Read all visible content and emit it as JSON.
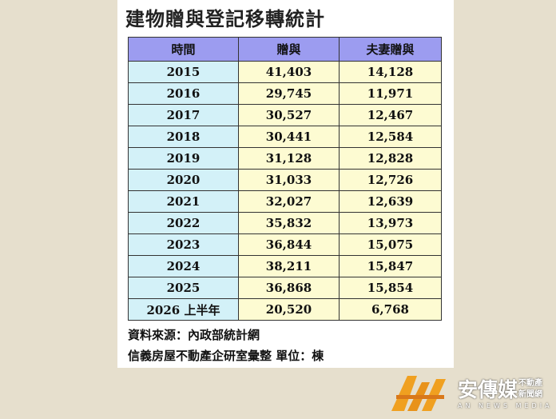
{
  "header": {
    "title": "建物贈與登記移轉統計"
  },
  "table": {
    "columns": [
      "時間",
      "贈與",
      "夫妻贈與"
    ],
    "rows": [
      [
        "2015",
        "41,403",
        "14,128"
      ],
      [
        "2016",
        "29,745",
        "11,971"
      ],
      [
        "2017",
        "30,527",
        "12,467"
      ],
      [
        "2018",
        "30,441",
        "12,584"
      ],
      [
        "2019",
        "31,128",
        "12,828"
      ],
      [
        "2020",
        "31,033",
        "12,726"
      ],
      [
        "2021",
        "32,027",
        "12,639"
      ],
      [
        "2022",
        "35,832",
        "13,973"
      ],
      [
        "2023",
        "36,844",
        "15,075"
      ],
      [
        "2024",
        "38,211",
        "15,847"
      ],
      [
        "2025",
        "36,868",
        "15,854"
      ],
      [
        "2026 上半年",
        "20,520",
        "6,768"
      ]
    ]
  },
  "notes": {
    "source": "資料來源：內政部統計網",
    "compiler": "信義房屋不動產企研室彙整 單位：棟"
  },
  "logo": {
    "name": "安傳媒",
    "tag": [
      "不動產",
      "新聞網"
    ],
    "english": "AN NEWS MEDIA"
  }
}
